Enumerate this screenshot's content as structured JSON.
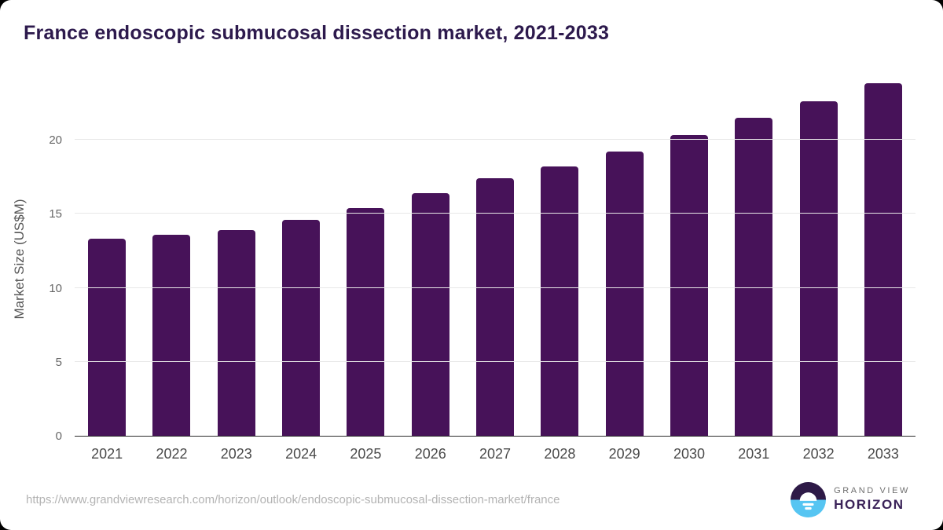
{
  "title": "France endoscopic submucosal dissection market, 2021-2033",
  "chart_data": {
    "type": "bar",
    "title": "France endoscopic submucosal dissection market, 2021-2033",
    "categories": [
      "2021",
      "2022",
      "2023",
      "2024",
      "2025",
      "2026",
      "2027",
      "2028",
      "2029",
      "2030",
      "2031",
      "2032",
      "2033"
    ],
    "values": [
      13.3,
      13.6,
      13.9,
      14.6,
      15.4,
      16.4,
      17.4,
      18.2,
      19.2,
      20.3,
      21.5,
      22.6,
      23.8
    ],
    "xlabel": "",
    "ylabel": "Market Size (US$M)",
    "ylim": [
      0,
      24.4
    ],
    "yticks": [
      0,
      5,
      10,
      15,
      20
    ],
    "grid": true,
    "legend_position": "none",
    "bar_color": "#471259"
  },
  "colors": {
    "bar": "#471259",
    "title": "#2d1a4d",
    "axis_text": "#666666",
    "gridline": "#e8e8e8",
    "url_text": "#b3b3b3",
    "logo_dark": "#2e1a47",
    "logo_blue": "#56c5f2"
  },
  "footer": {
    "source_url": "https://www.grandviewresearch.com/horizon/outlook/endoscopic-submucosal-dissection-market/france",
    "logo": {
      "line1": "GRAND VIEW",
      "line2": "HORIZON"
    }
  }
}
